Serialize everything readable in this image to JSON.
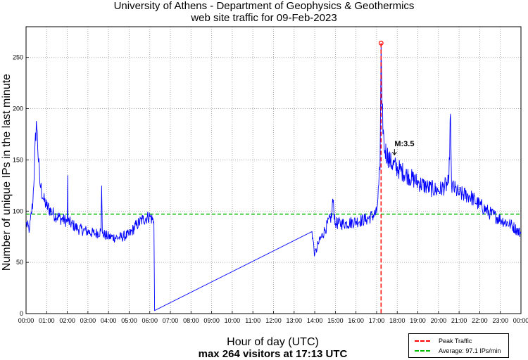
{
  "chart_data": {
    "type": "line",
    "title": "University of Athens - Department of Geophysics & Geothermics",
    "subtitle": "web site traffic for 09-Feb-2023",
    "xlabel": "Hour of day (UTC)",
    "xsubtitle": "max 264 visitors at 17:13 UTC",
    "ylabel": "Number of unique IPs in the last minute",
    "xlim": [
      "00:00",
      "24:00"
    ],
    "ylim": [
      0,
      280
    ],
    "yticks": [
      0,
      50,
      100,
      150,
      200,
      250
    ],
    "xticks": [
      "00:00",
      "01:00",
      "02:00",
      "03:00",
      "04:00",
      "05:00",
      "06:00",
      "07:00",
      "08:00",
      "09:00",
      "10:00",
      "11:00",
      "12:00",
      "13:00",
      "14:00",
      "15:00",
      "16:00",
      "17:00",
      "18:00",
      "19:00",
      "20:00",
      "21:00",
      "22:00",
      "23:00",
      "00:00"
    ],
    "grid": true,
    "legend_position": "bottom-right",
    "series": [
      {
        "name": "",
        "color": "#0000ff",
        "points": [
          [
            "00:00",
            88
          ],
          [
            "00:10",
            82
          ],
          [
            "00:20",
            110
          ],
          [
            "00:30",
            188
          ],
          [
            "00:40",
            128
          ],
          [
            "00:50",
            112
          ],
          [
            "01:00",
            105
          ],
          [
            "01:20",
            97
          ],
          [
            "01:40",
            93
          ],
          [
            "02:00",
            90
          ],
          [
            "02:01",
            135
          ],
          [
            "02:02",
            90
          ],
          [
            "02:30",
            83
          ],
          [
            "03:00",
            80
          ],
          [
            "03:20",
            78
          ],
          [
            "03:38",
            80
          ],
          [
            "03:40",
            125
          ],
          [
            "03:42",
            78
          ],
          [
            "04:00",
            75
          ],
          [
            "04:30",
            74
          ],
          [
            "05:00",
            77
          ],
          [
            "05:20",
            86
          ],
          [
            "05:40",
            92
          ],
          [
            "06:00",
            95
          ],
          [
            "06:12",
            90
          ],
          [
            "06:14",
            3
          ],
          [
            "13:52",
            80
          ],
          [
            "14:00",
            57
          ],
          [
            "14:10",
            68
          ],
          [
            "14:30",
            82
          ],
          [
            "14:50",
            96
          ],
          [
            "14:52",
            112
          ],
          [
            "15:00",
            88
          ],
          [
            "15:30",
            88
          ],
          [
            "16:00",
            90
          ],
          [
            "16:30",
            92
          ],
          [
            "17:00",
            98
          ],
          [
            "17:10",
            140
          ],
          [
            "17:13",
            264
          ],
          [
            "17:16",
            200
          ],
          [
            "17:22",
            162
          ],
          [
            "17:40",
            148
          ],
          [
            "18:00",
            142
          ],
          [
            "18:30",
            135
          ],
          [
            "19:00",
            128
          ],
          [
            "19:30",
            123
          ],
          [
            "20:00",
            120
          ],
          [
            "20:30",
            127
          ],
          [
            "20:35",
            195
          ],
          [
            "20:38",
            125
          ],
          [
            "21:00",
            117
          ],
          [
            "21:30",
            115
          ],
          [
            "22:00",
            106
          ],
          [
            "22:30",
            98
          ],
          [
            "23:00",
            92
          ],
          [
            "23:30",
            87
          ],
          [
            "24:00",
            78
          ]
        ]
      }
    ],
    "reference_lines": [
      {
        "name": "Peak Traffic",
        "color": "#ff0000",
        "x": "17:13"
      },
      {
        "name": "Average: 97.1 IPs/min",
        "color": "#00bb00",
        "y": 97.1
      }
    ],
    "peak_marker": {
      "x": "17:13",
      "y": 264
    },
    "annotations": [
      {
        "text": "M:3.5",
        "x": "17:52",
        "y": 155
      }
    ]
  }
}
